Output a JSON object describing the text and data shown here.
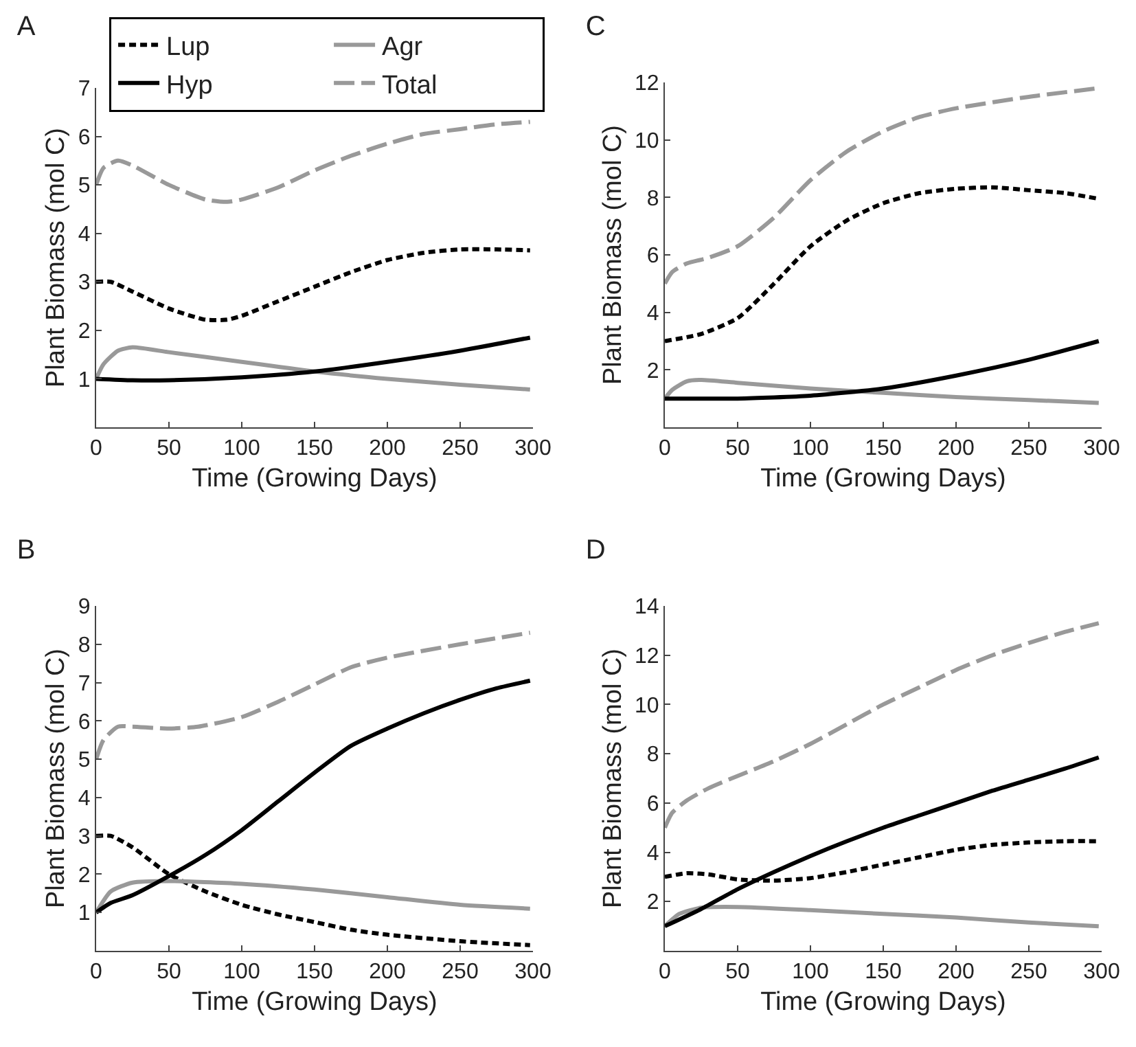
{
  "chart_data": [
    {
      "type": "line",
      "title": "A",
      "xlabel": "Time (Growing Days)",
      "ylabel": "Plant Biomass (mol C)",
      "xlim": [
        0,
        300
      ],
      "ylim": [
        0,
        7
      ],
      "xticks": [
        0,
        50,
        100,
        150,
        200,
        250,
        300
      ],
      "yticks": [
        1,
        2,
        3,
        4,
        5,
        6,
        7
      ],
      "grid": false,
      "legend": "top left",
      "series": [
        {
          "name": "Lup",
          "color": "#000000",
          "line_style": "dotted",
          "x": [
            0,
            10,
            25,
            50,
            75,
            90,
            100,
            125,
            150,
            175,
            200,
            225,
            250,
            275,
            298
          ],
          "values": [
            3.0,
            3.0,
            2.8,
            2.45,
            2.22,
            2.22,
            2.3,
            2.6,
            2.9,
            3.2,
            3.45,
            3.6,
            3.67,
            3.67,
            3.65
          ]
        },
        {
          "name": "Agr",
          "color": "#999999",
          "line_style": "solid",
          "x": [
            0,
            5,
            15,
            25,
            50,
            100,
            150,
            200,
            250,
            298
          ],
          "values": [
            1.0,
            1.3,
            1.58,
            1.65,
            1.55,
            1.35,
            1.15,
            1.0,
            0.88,
            0.78
          ]
        },
        {
          "name": "Hyp",
          "color": "#000000",
          "line_style": "solid",
          "x": [
            0,
            25,
            50,
            100,
            150,
            200,
            250,
            298
          ],
          "values": [
            1.0,
            0.97,
            0.97,
            1.03,
            1.15,
            1.35,
            1.58,
            1.85
          ]
        },
        {
          "name": "Total",
          "color": "#999999",
          "line_style": "dashed",
          "x": [
            0,
            5,
            15,
            25,
            50,
            75,
            90,
            100,
            125,
            150,
            175,
            200,
            225,
            250,
            275,
            298
          ],
          "values": [
            5.0,
            5.35,
            5.5,
            5.4,
            5.0,
            4.7,
            4.65,
            4.7,
            4.95,
            5.3,
            5.6,
            5.85,
            6.05,
            6.15,
            6.25,
            6.3
          ]
        }
      ]
    },
    {
      "type": "line",
      "title": "C",
      "xlabel": "Time (Growing Days)",
      "ylabel": "Plant Biomass (mol C)",
      "xlim": [
        0,
        300
      ],
      "ylim": [
        0,
        12
      ],
      "xticks": [
        0,
        50,
        100,
        150,
        200,
        250,
        300
      ],
      "yticks": [
        2,
        4,
        6,
        8,
        10,
        12
      ],
      "grid": false,
      "series": [
        {
          "color": "#000000",
          "line_style": "dotted",
          "x": [
            0,
            25,
            50,
            75,
            100,
            125,
            150,
            175,
            200,
            225,
            250,
            275,
            298
          ],
          "values": [
            3.0,
            3.25,
            3.8,
            5.0,
            6.3,
            7.2,
            7.8,
            8.15,
            8.3,
            8.35,
            8.25,
            8.15,
            7.95
          ]
        },
        {
          "color": "#999999",
          "line_style": "solid",
          "x": [
            0,
            5,
            15,
            25,
            50,
            100,
            150,
            200,
            250,
            298
          ],
          "values": [
            1.0,
            1.3,
            1.6,
            1.65,
            1.55,
            1.35,
            1.2,
            1.05,
            0.95,
            0.85
          ]
        },
        {
          "color": "#000000",
          "line_style": "solid",
          "x": [
            0,
            50,
            100,
            150,
            200,
            250,
            298
          ],
          "values": [
            1.0,
            1.0,
            1.1,
            1.35,
            1.8,
            2.35,
            3.0
          ]
        },
        {
          "color": "#999999",
          "line_style": "dashed",
          "x": [
            0,
            5,
            15,
            30,
            50,
            75,
            100,
            125,
            150,
            175,
            200,
            250,
            298
          ],
          "values": [
            5.0,
            5.4,
            5.7,
            5.9,
            6.3,
            7.3,
            8.6,
            9.6,
            10.3,
            10.8,
            11.1,
            11.5,
            11.8
          ]
        }
      ]
    },
    {
      "type": "line",
      "title": "B",
      "xlabel": "Time (Growing Days)",
      "ylabel": "Plant Biomass (mol C)",
      "xlim": [
        0,
        300
      ],
      "ylim": [
        0,
        9
      ],
      "xticks": [
        0,
        50,
        100,
        150,
        200,
        250,
        300
      ],
      "yticks": [
        1,
        2,
        3,
        4,
        5,
        6,
        7,
        8,
        9
      ],
      "grid": false,
      "series": [
        {
          "color": "#000000",
          "line_style": "dotted",
          "x": [
            0,
            10,
            25,
            50,
            75,
            100,
            125,
            150,
            175,
            200,
            250,
            298
          ],
          "values": [
            3.0,
            3.0,
            2.7,
            2.0,
            1.55,
            1.2,
            0.95,
            0.75,
            0.55,
            0.42,
            0.25,
            0.15
          ]
        },
        {
          "color": "#999999",
          "line_style": "solid",
          "x": [
            0,
            10,
            25,
            50,
            100,
            150,
            200,
            250,
            298
          ],
          "values": [
            1.0,
            1.55,
            1.78,
            1.82,
            1.75,
            1.6,
            1.4,
            1.2,
            1.1
          ]
        },
        {
          "color": "#000000",
          "line_style": "solid",
          "x": [
            0,
            10,
            25,
            50,
            75,
            100,
            125,
            150,
            175,
            200,
            225,
            250,
            275,
            298
          ],
          "values": [
            1.0,
            1.25,
            1.45,
            1.95,
            2.5,
            3.15,
            3.9,
            4.65,
            5.35,
            5.8,
            6.2,
            6.55,
            6.85,
            7.05
          ]
        },
        {
          "color": "#999999",
          "line_style": "dashed",
          "x": [
            0,
            5,
            15,
            25,
            50,
            70,
            100,
            125,
            150,
            175,
            200,
            250,
            298
          ],
          "values": [
            5.0,
            5.5,
            5.85,
            5.85,
            5.8,
            5.85,
            6.1,
            6.5,
            6.95,
            7.4,
            7.65,
            8.0,
            8.3
          ]
        }
      ]
    },
    {
      "type": "line",
      "title": "D",
      "xlabel": "Time (Growing Days)",
      "ylabel": "Plant Biomass (mol C)",
      "xlim": [
        0,
        300
      ],
      "ylim": [
        0,
        14
      ],
      "xticks": [
        0,
        50,
        100,
        150,
        200,
        250,
        300
      ],
      "yticks": [
        2,
        4,
        6,
        8,
        10,
        12,
        14
      ],
      "grid": false,
      "series": [
        {
          "color": "#000000",
          "line_style": "dotted",
          "x": [
            0,
            15,
            30,
            50,
            75,
            100,
            125,
            150,
            175,
            200,
            225,
            250,
            275,
            298
          ],
          "values": [
            3.0,
            3.15,
            3.1,
            2.9,
            2.85,
            2.95,
            3.2,
            3.5,
            3.8,
            4.1,
            4.3,
            4.4,
            4.45,
            4.45
          ]
        },
        {
          "color": "#999999",
          "line_style": "solid",
          "x": [
            0,
            10,
            25,
            50,
            100,
            150,
            200,
            250,
            298
          ],
          "values": [
            1.0,
            1.5,
            1.75,
            1.78,
            1.65,
            1.5,
            1.35,
            1.15,
            1.0
          ]
        },
        {
          "color": "#000000",
          "line_style": "solid",
          "x": [
            0,
            25,
            50,
            75,
            100,
            125,
            150,
            175,
            200,
            225,
            250,
            275,
            298
          ],
          "values": [
            1.0,
            1.7,
            2.5,
            3.2,
            3.85,
            4.45,
            5.0,
            5.5,
            6.0,
            6.5,
            6.95,
            7.4,
            7.85
          ]
        },
        {
          "color": "#999999",
          "line_style": "dashed",
          "x": [
            0,
            5,
            15,
            30,
            50,
            75,
            100,
            125,
            150,
            175,
            200,
            225,
            250,
            275,
            298
          ],
          "values": [
            5.0,
            5.6,
            6.1,
            6.6,
            7.1,
            7.7,
            8.4,
            9.2,
            10.0,
            10.7,
            11.4,
            12.0,
            12.5,
            12.95,
            13.3
          ]
        }
      ]
    }
  ]
}
